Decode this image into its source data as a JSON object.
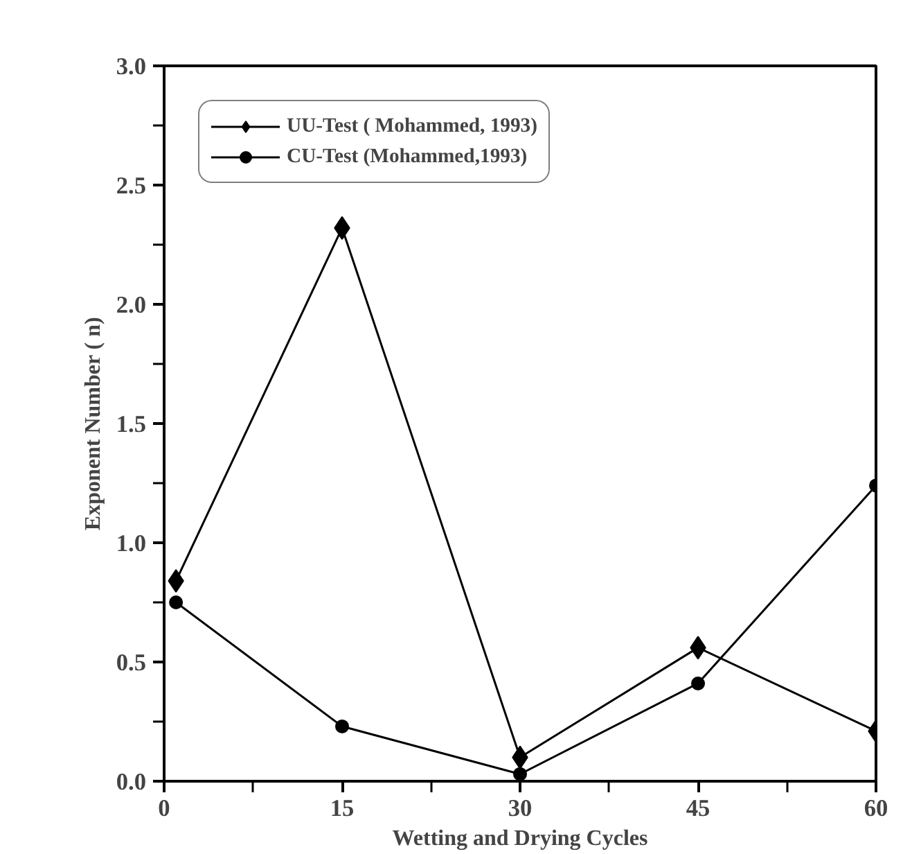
{
  "chart_data": {
    "type": "line",
    "xlabel": "Wetting and Drying Cycles",
    "ylabel": "Exponent Number ( n)",
    "x": [
      1,
      15,
      30,
      45,
      60
    ],
    "series": [
      {
        "name": "UU-Test ( Mohammed, 1993)",
        "color": "#000000",
        "marker": "diamond",
        "values": [
          0.84,
          2.32,
          0.1,
          0.56,
          0.21
        ]
      },
      {
        "name": "CU-Test (Mohammed,1993)",
        "color": "#000000",
        "marker": "circle",
        "values": [
          0.75,
          0.23,
          0.03,
          0.41,
          1.24
        ]
      }
    ],
    "xlim": [
      0,
      60
    ],
    "ylim": [
      0,
      3.0
    ],
    "xticks": [
      0,
      15,
      30,
      45,
      60
    ],
    "yticks": [
      {
        "value": 0,
        "label": "0.0"
      },
      {
        "value": 0.5,
        "label": "0.5"
      },
      {
        "value": 1,
        "label": "1.0"
      },
      {
        "value": 1.5,
        "label": "1.5"
      },
      {
        "value": 2,
        "label": "2.0"
      },
      {
        "value": 2.5,
        "label": "2.5"
      },
      {
        "value": 3,
        "label": "3.0"
      }
    ],
    "grid": false,
    "legend": "top left",
    "line_style": "solid"
  }
}
